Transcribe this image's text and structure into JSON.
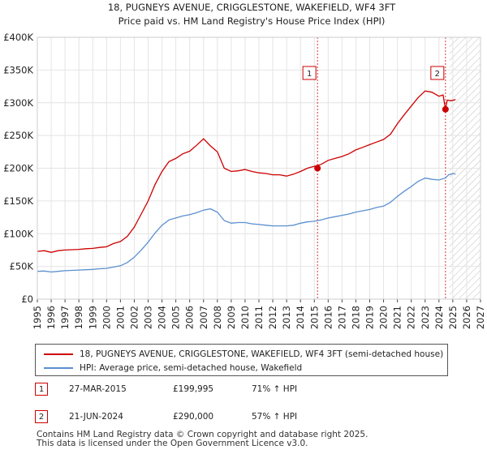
{
  "chart_data": {
    "type": "line",
    "title": "18, PUGNEYS AVENUE, CRIGGLESTONE, WAKEFIELD, WF4 3FT",
    "subtitle": "Price paid vs. HM Land Registry's House Price Index (HPI)",
    "xlim": [
      1995,
      2027
    ],
    "ylim": [
      0,
      400000
    ],
    "x_ticks": [
      "1995",
      "1996",
      "1997",
      "1998",
      "1999",
      "2000",
      "2001",
      "2002",
      "2003",
      "2004",
      "2005",
      "2006",
      "2007",
      "2008",
      "2009",
      "2010",
      "2011",
      "2012",
      "2013",
      "2014",
      "2015",
      "2016",
      "2017",
      "2018",
      "2019",
      "2020",
      "2021",
      "2022",
      "2023",
      "2024",
      "2025",
      "2026",
      "2027"
    ],
    "y_ticks": [
      {
        "value": 0,
        "label": "£0"
      },
      {
        "value": 50000,
        "label": "£50K"
      },
      {
        "value": 100000,
        "label": "£100K"
      },
      {
        "value": 150000,
        "label": "£150K"
      },
      {
        "value": 200000,
        "label": "£200K"
      },
      {
        "value": 250000,
        "label": "£250K"
      },
      {
        "value": 300000,
        "label": "£300K"
      },
      {
        "value": 350000,
        "label": "£350K"
      },
      {
        "value": 400000,
        "label": "£400K"
      }
    ],
    "grid": true,
    "forecast_start": 2024.75,
    "series": [
      {
        "name": "18, PUGNEYS AVENUE, CRIGGLESTONE, WAKEFIELD, WF4 3FT (semi-detached house)",
        "color": "#cc0000",
        "points": [
          [
            1995.0,
            73000
          ],
          [
            1995.5,
            74000
          ],
          [
            1996.0,
            71500
          ],
          [
            1996.5,
            74000
          ],
          [
            1997.0,
            75000
          ],
          [
            1997.5,
            75500
          ],
          [
            1998.0,
            76000
          ],
          [
            1998.5,
            77000
          ],
          [
            1999.0,
            77500
          ],
          [
            1999.5,
            79000
          ],
          [
            2000.0,
            80000
          ],
          [
            2000.5,
            85000
          ],
          [
            2001.0,
            88000
          ],
          [
            2001.5,
            96000
          ],
          [
            2002.0,
            110000
          ],
          [
            2002.5,
            130000
          ],
          [
            2003.0,
            150000
          ],
          [
            2003.5,
            175000
          ],
          [
            2004.0,
            195000
          ],
          [
            2004.5,
            210000
          ],
          [
            2005.0,
            215000
          ],
          [
            2005.5,
            222000
          ],
          [
            2006.0,
            226000
          ],
          [
            2006.5,
            235000
          ],
          [
            2007.0,
            245000
          ],
          [
            2007.5,
            234000
          ],
          [
            2008.0,
            225000
          ],
          [
            2008.5,
            200000
          ],
          [
            2009.0,
            195000
          ],
          [
            2009.5,
            196000
          ],
          [
            2010.0,
            198000
          ],
          [
            2010.5,
            195000
          ],
          [
            2011.0,
            193000
          ],
          [
            2011.5,
            192000
          ],
          [
            2012.0,
            190000
          ],
          [
            2012.5,
            190000
          ],
          [
            2013.0,
            188000
          ],
          [
            2013.5,
            191000
          ],
          [
            2014.0,
            195000
          ],
          [
            2014.5,
            200000
          ],
          [
            2015.0,
            203000
          ],
          [
            2015.5,
            206000
          ],
          [
            2016.0,
            212000
          ],
          [
            2016.5,
            215000
          ],
          [
            2017.0,
            218000
          ],
          [
            2017.5,
            222000
          ],
          [
            2018.0,
            228000
          ],
          [
            2018.5,
            232000
          ],
          [
            2019.0,
            236000
          ],
          [
            2019.5,
            240000
          ],
          [
            2020.0,
            244000
          ],
          [
            2020.5,
            252000
          ],
          [
            2021.0,
            268000
          ],
          [
            2021.5,
            282000
          ],
          [
            2022.0,
            295000
          ],
          [
            2022.5,
            308000
          ],
          [
            2023.0,
            318000
          ],
          [
            2023.5,
            316000
          ],
          [
            2024.0,
            310000
          ],
          [
            2024.3,
            312000
          ],
          [
            2024.47,
            290000
          ],
          [
            2024.6,
            304000
          ],
          [
            2024.9,
            303000
          ],
          [
            2025.2,
            305000
          ]
        ]
      },
      {
        "name": "HPI: Average price, semi-detached house, Wakefield",
        "color": "#5b8fd0",
        "points": [
          [
            1995.0,
            42500
          ],
          [
            1995.5,
            43000
          ],
          [
            1996.0,
            41500
          ],
          [
            1996.5,
            42500
          ],
          [
            1997.0,
            43500
          ],
          [
            1997.5,
            44000
          ],
          [
            1998.0,
            44500
          ],
          [
            1998.5,
            45000
          ],
          [
            1999.0,
            45500
          ],
          [
            1999.5,
            46500
          ],
          [
            2000.0,
            47000
          ],
          [
            2000.5,
            49000
          ],
          [
            2001.0,
            51000
          ],
          [
            2001.5,
            56000
          ],
          [
            2002.0,
            64000
          ],
          [
            2002.5,
            75000
          ],
          [
            2003.0,
            87000
          ],
          [
            2003.5,
            101000
          ],
          [
            2004.0,
            113000
          ],
          [
            2004.5,
            121000
          ],
          [
            2005.0,
            124000
          ],
          [
            2005.5,
            127000
          ],
          [
            2006.0,
            129000
          ],
          [
            2006.5,
            132000
          ],
          [
            2007.0,
            136000
          ],
          [
            2007.5,
            138000
          ],
          [
            2008.0,
            133000
          ],
          [
            2008.5,
            120000
          ],
          [
            2009.0,
            116000
          ],
          [
            2009.5,
            117000
          ],
          [
            2010.0,
            117000
          ],
          [
            2010.5,
            115000
          ],
          [
            2011.0,
            114000
          ],
          [
            2011.5,
            113000
          ],
          [
            2012.0,
            112000
          ],
          [
            2012.5,
            112000
          ],
          [
            2013.0,
            112000
          ],
          [
            2013.5,
            113000
          ],
          [
            2014.0,
            116000
          ],
          [
            2014.5,
            118000
          ],
          [
            2015.0,
            119000
          ],
          [
            2015.5,
            121000
          ],
          [
            2016.0,
            124000
          ],
          [
            2016.5,
            126000
          ],
          [
            2017.0,
            128000
          ],
          [
            2017.5,
            130000
          ],
          [
            2018.0,
            133000
          ],
          [
            2018.5,
            135000
          ],
          [
            2019.0,
            137000
          ],
          [
            2019.5,
            140000
          ],
          [
            2020.0,
            142000
          ],
          [
            2020.5,
            148000
          ],
          [
            2021.0,
            157000
          ],
          [
            2021.5,
            165000
          ],
          [
            2022.0,
            172000
          ],
          [
            2022.5,
            180000
          ],
          [
            2023.0,
            185000
          ],
          [
            2023.5,
            183000
          ],
          [
            2024.0,
            182000
          ],
          [
            2024.47,
            185000
          ],
          [
            2024.7,
            190000
          ],
          [
            2025.0,
            192000
          ],
          [
            2025.2,
            191000
          ]
        ]
      }
    ],
    "sales": [
      {
        "id": "1",
        "x": 2015.23,
        "y": 199995
      },
      {
        "id": "2",
        "x": 2024.47,
        "y": 290000
      }
    ]
  },
  "legend": {
    "property_label": "18, PUGNEYS AVENUE, CRIGGLESTONE, WAKEFIELD, WF4 3FT (semi-detached house)",
    "hpi_label": "HPI: Average price, semi-detached house, Wakefield"
  },
  "transactions": [
    {
      "num": "1",
      "date": "27-MAR-2015",
      "price": "£199,995",
      "hpi": "71% ↑ HPI"
    },
    {
      "num": "2",
      "date": "21-JUN-2024",
      "price": "£290,000",
      "hpi": "57% ↑ HPI"
    }
  ],
  "footer": {
    "line1": "Contains HM Land Registry data © Crown copyright and database right 2025.",
    "line2": "This data is licensed under the Open Government Licence v3.0."
  }
}
